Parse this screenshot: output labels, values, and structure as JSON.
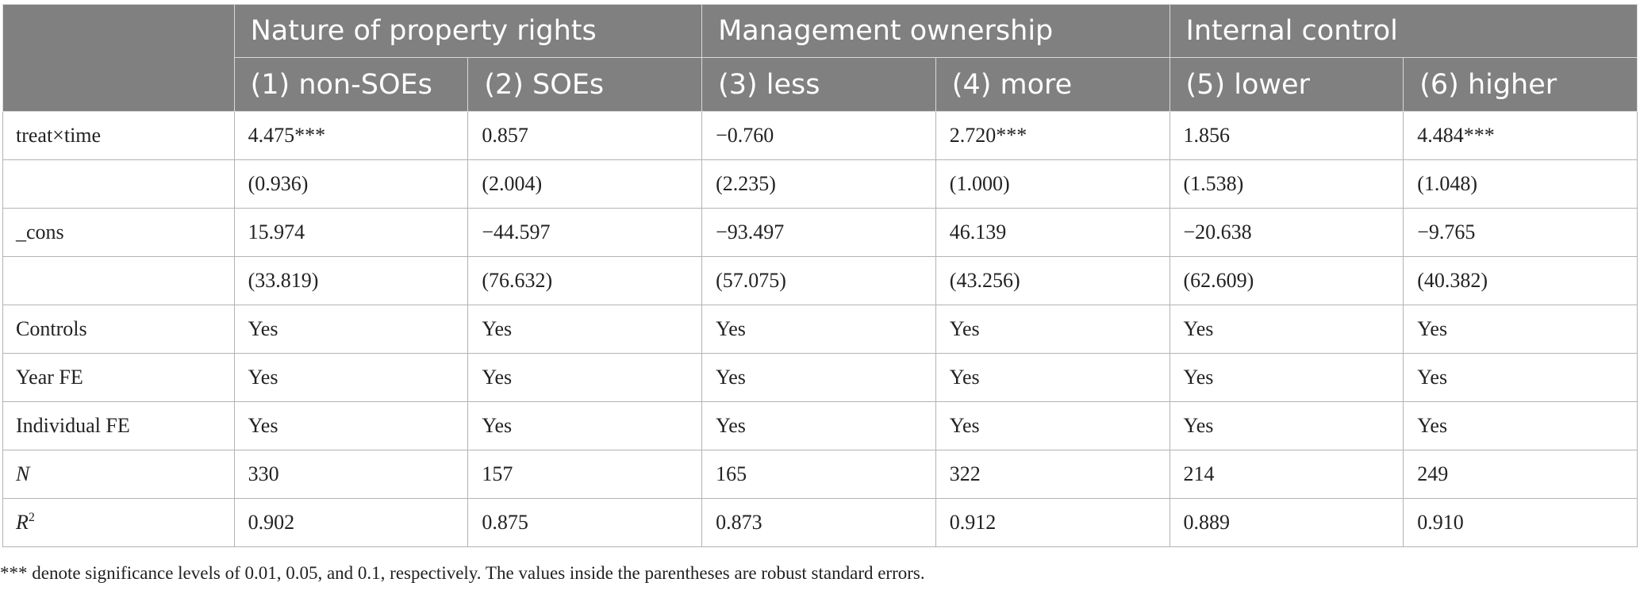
{
  "header": {
    "groups": [
      "Nature of property rights",
      "Management ownership",
      "Internal control"
    ],
    "columns": [
      "(1) non-SOEs",
      "(2) SOEs",
      "(3) less",
      "(4) more",
      "(5) lower",
      "(6) higher"
    ]
  },
  "rows": [
    {
      "label": "treat×time",
      "values": [
        "4.475***",
        "0.857",
        "−0.760",
        "2.720***",
        "1.856",
        "4.484***"
      ]
    },
    {
      "label": "",
      "values": [
        "(0.936)",
        "(2.004)",
        "(2.235)",
        "(1.000)",
        "(1.538)",
        "(1.048)"
      ]
    },
    {
      "label": "_cons",
      "values": [
        "15.974",
        "−44.597",
        "−93.497",
        "46.139",
        "−20.638",
        "−9.765"
      ]
    },
    {
      "label": "",
      "values": [
        "(33.819)",
        "(76.632)",
        "(57.075)",
        "(43.256)",
        "(62.609)",
        "(40.382)"
      ]
    },
    {
      "label": "Controls",
      "values": [
        "Yes",
        "Yes",
        "Yes",
        "Yes",
        "Yes",
        "Yes"
      ]
    },
    {
      "label": "Year FE",
      "values": [
        "Yes",
        "Yes",
        "Yes",
        "Yes",
        "Yes",
        "Yes"
      ]
    },
    {
      "label": "Individual FE",
      "values": [
        "Yes",
        "Yes",
        "Yes",
        "Yes",
        "Yes",
        "Yes"
      ]
    },
    {
      "label": "N",
      "values": [
        "330",
        "157",
        "165",
        "322",
        "214",
        "249"
      ]
    },
    {
      "label": "R",
      "label_sup": "2",
      "values": [
        "0.902",
        "0.875",
        "0.873",
        "0.912",
        "0.889",
        "0.910"
      ]
    }
  ],
  "note": "*** denote significance levels of 0.01, 0.05, and 0.1, respectively. The values inside the parentheses are robust standard errors."
}
